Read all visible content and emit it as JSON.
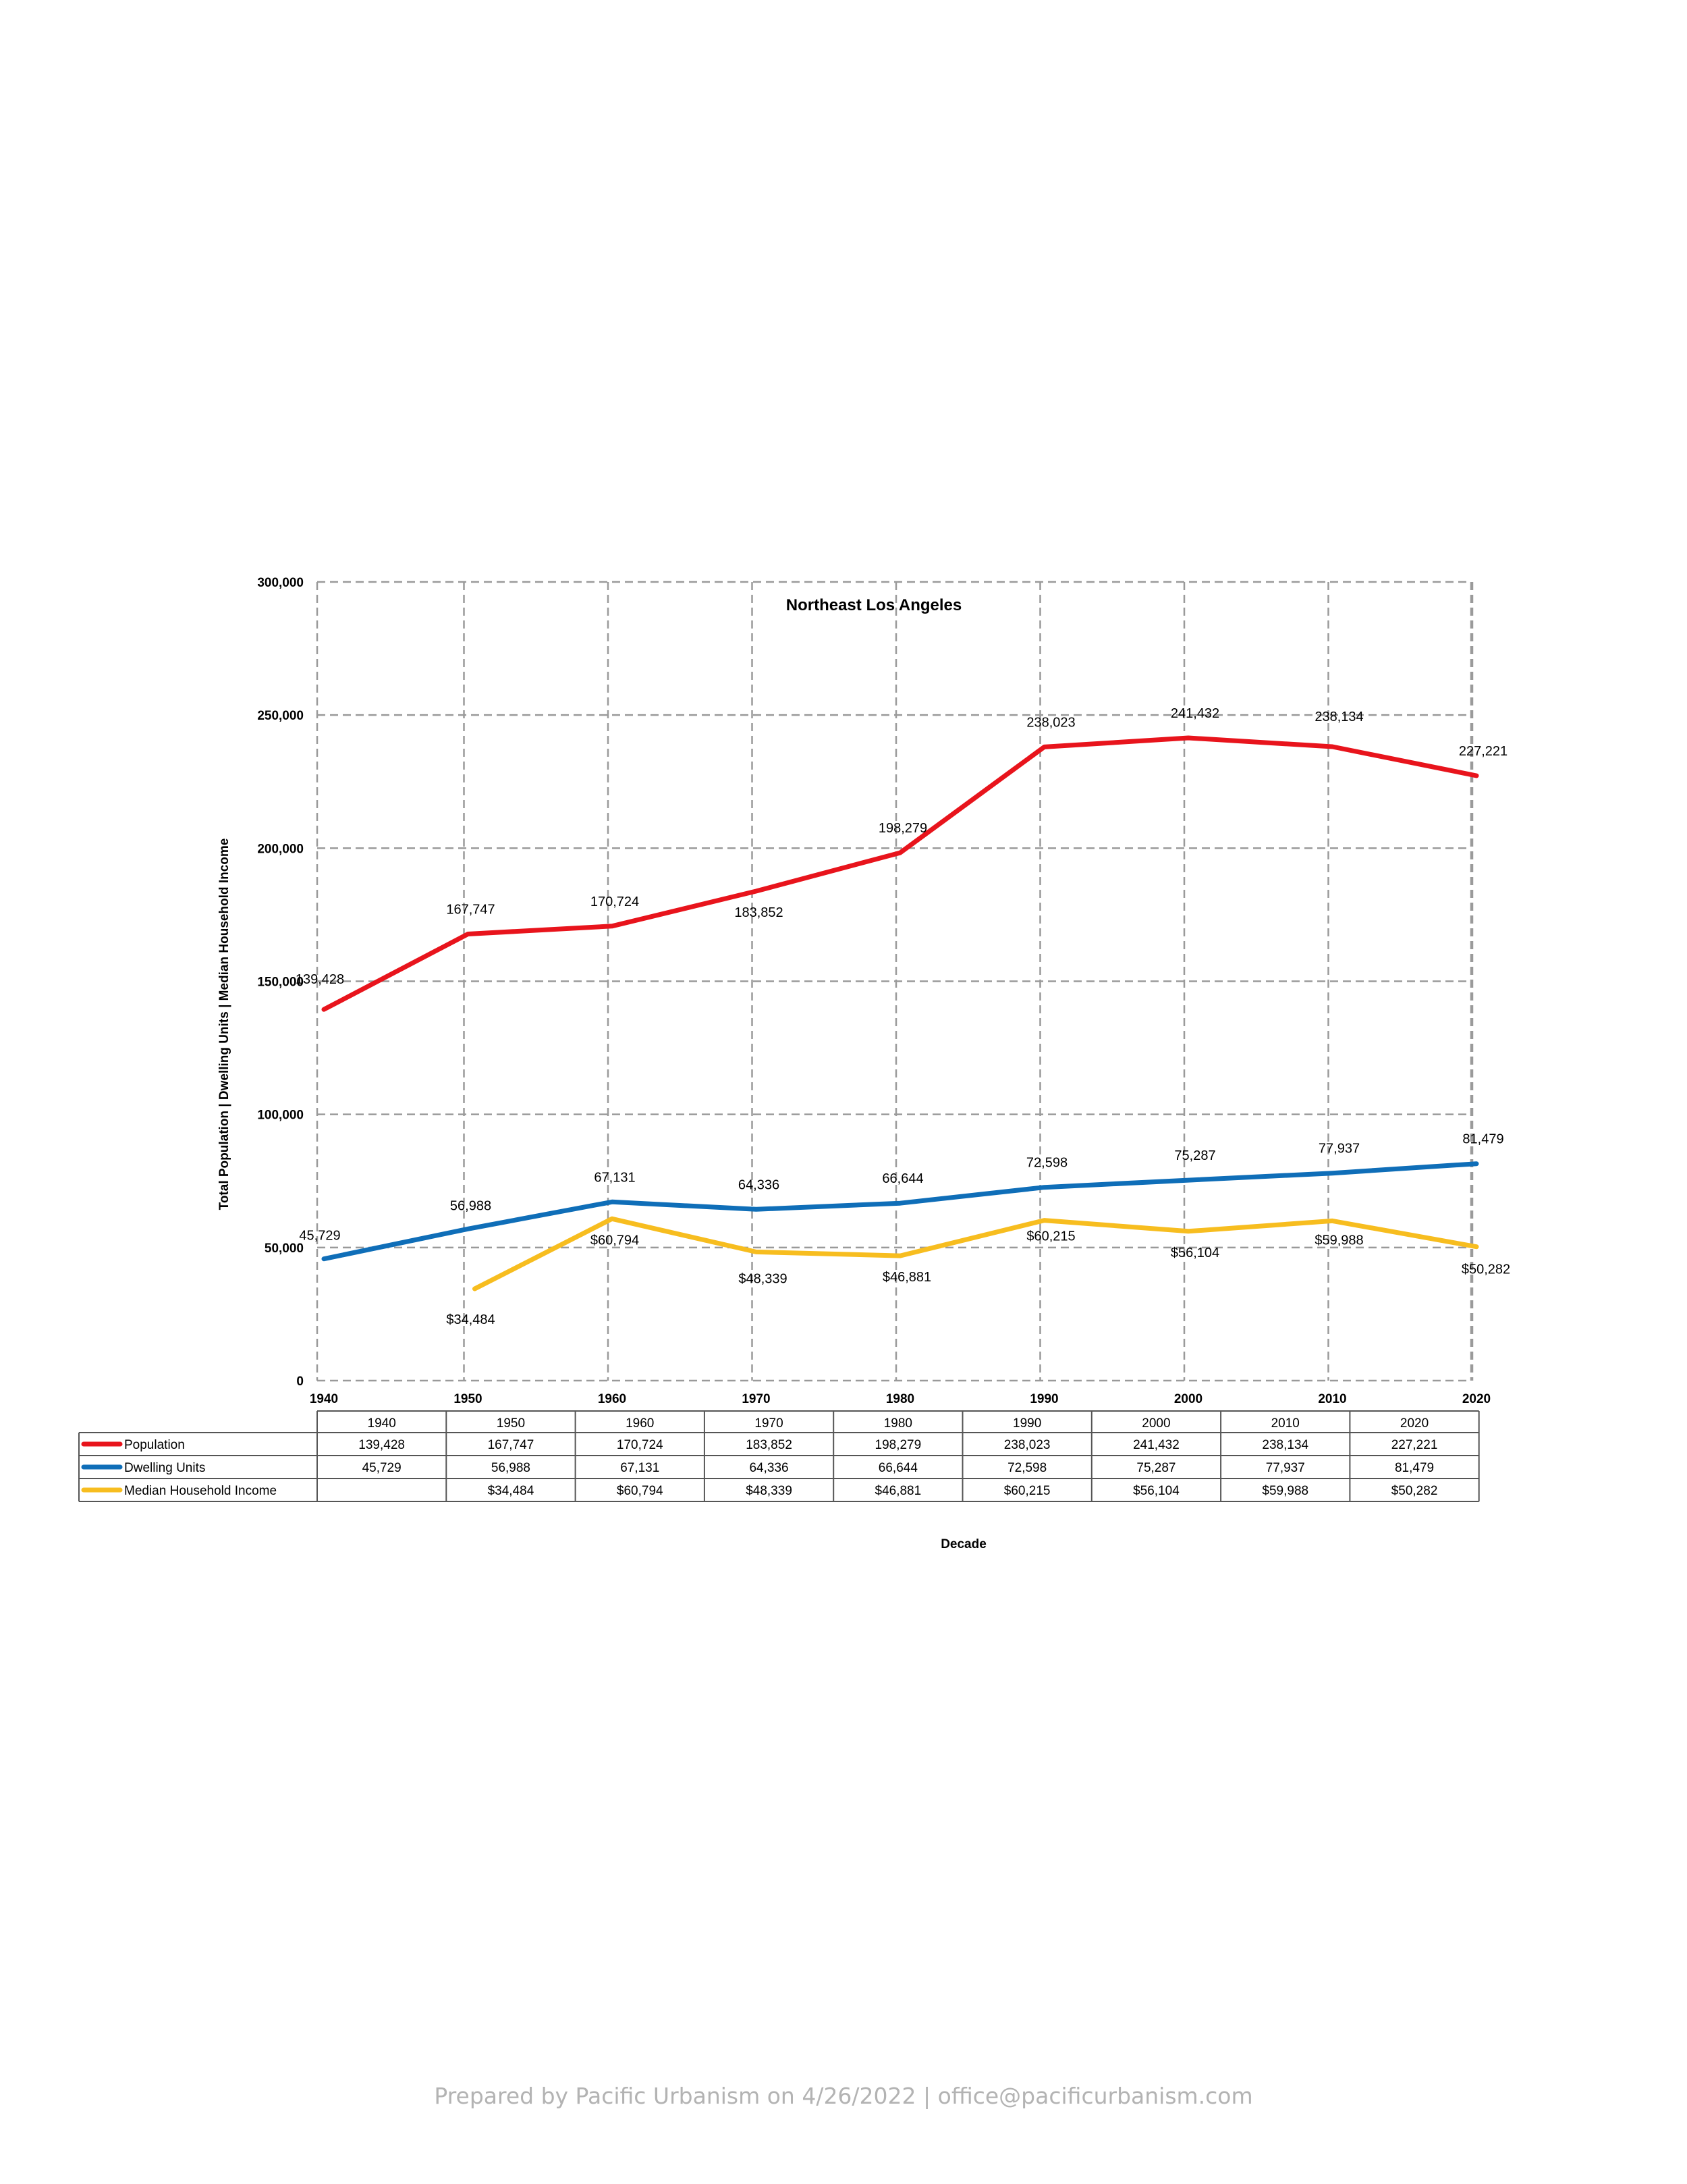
{
  "chart_data": {
    "type": "line",
    "title": "Northeast Los Angeles",
    "xlabel": "Decade",
    "ylabel": "Total Population | Dwelling Units | Median Household Income",
    "x": [
      "1940",
      "1950",
      "1960",
      "1970",
      "1980",
      "1990",
      "2000",
      "2010",
      "2020"
    ],
    "ylim": [
      0,
      300000
    ],
    "yticks": [
      "0",
      "50,000",
      "100,000",
      "150,000",
      "200,000",
      "250,000",
      "300,000"
    ],
    "ytick_values": [
      0,
      50000,
      100000,
      150000,
      200000,
      250000,
      300000
    ],
    "grid": true,
    "legend": "data-table-below",
    "series": [
      {
        "name": "Population",
        "color": "#e8141c",
        "values": [
          139428,
          167747,
          170724,
          183852,
          198279,
          238023,
          241432,
          238134,
          227221
        ],
        "labels": [
          "139,428",
          "167,747",
          "170,724",
          "183,852",
          "198,279",
          "238,023",
          "241,432",
          "238,134",
          "227,221"
        ]
      },
      {
        "name": "Dwelling Units",
        "color": "#0f6eb8",
        "values": [
          45729,
          56988,
          67131,
          64336,
          66644,
          72598,
          75287,
          77937,
          81479
        ],
        "labels": [
          "45,729",
          "56,988",
          "67,131",
          "64,336",
          "66,644",
          "72,598",
          "75,287",
          "77,937",
          "81,479"
        ]
      },
      {
        "name": "Median Household Income",
        "color": "#f7bd1f",
        "values": [
          null,
          34484,
          60794,
          48339,
          46881,
          60215,
          56104,
          59988,
          50282
        ],
        "labels": [
          "",
          "$34,484",
          "$60,794",
          "$48,339",
          "$46,881",
          "$60,215",
          "$56,104",
          "$59,988",
          "$50,282"
        ]
      }
    ]
  },
  "footer": "Prepared by Pacific Urbanism on 4/26/2022 | office@pacificurbanism.com"
}
